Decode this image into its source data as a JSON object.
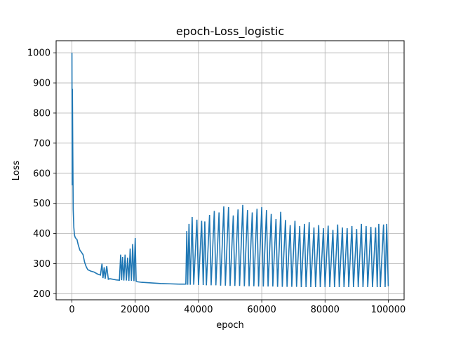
{
  "chart_data": {
    "type": "line",
    "title": "epoch-Loss_logistic",
    "xlabel": "epoch",
    "ylabel": "Loss",
    "xlim": [
      -5000,
      105000
    ],
    "ylim": [
      180,
      1040
    ],
    "x_ticks": [
      0,
      20000,
      40000,
      60000,
      80000,
      100000
    ],
    "y_ticks": [
      200,
      300,
      400,
      500,
      600,
      700,
      800,
      900,
      1000
    ],
    "grid": true,
    "series": [
      {
        "color": "#1f77b4",
        "points": [
          [
            0,
            1000
          ],
          [
            80,
            560
          ],
          [
            150,
            880
          ],
          [
            250,
            700
          ],
          [
            400,
            480
          ],
          [
            600,
            420
          ],
          [
            800,
            395
          ],
          [
            1000,
            388
          ],
          [
            1300,
            383
          ],
          [
            1600,
            380
          ],
          [
            2000,
            362
          ],
          [
            2500,
            345
          ],
          [
            3000,
            338
          ],
          [
            3500,
            330
          ],
          [
            4000,
            305
          ],
          [
            4500,
            290
          ],
          [
            5000,
            280
          ],
          [
            6000,
            275
          ],
          [
            7000,
            272
          ],
          [
            8000,
            266
          ],
          [
            9000,
            262
          ],
          [
            9500,
            300
          ],
          [
            9800,
            252
          ],
          [
            10200,
            288
          ],
          [
            10500,
            250
          ],
          [
            11000,
            292
          ],
          [
            11500,
            248
          ],
          [
            12000,
            250
          ],
          [
            13000,
            248
          ],
          [
            14000,
            246
          ],
          [
            15000,
            245
          ],
          [
            15400,
            330
          ],
          [
            15700,
            245
          ],
          [
            16000,
            322
          ],
          [
            16400,
            244
          ],
          [
            16800,
            330
          ],
          [
            17200,
            244
          ],
          [
            17600,
            320
          ],
          [
            18000,
            243
          ],
          [
            18400,
            350
          ],
          [
            18800,
            243
          ],
          [
            19200,
            365
          ],
          [
            19600,
            242
          ],
          [
            20000,
            385
          ],
          [
            20300,
            242
          ],
          [
            20600,
            240
          ],
          [
            22000,
            238
          ],
          [
            25000,
            236
          ],
          [
            28000,
            234
          ],
          [
            31000,
            233
          ],
          [
            34000,
            232
          ],
          [
            36000,
            232
          ],
          [
            36300,
            408
          ],
          [
            36600,
            230
          ],
          [
            37000,
            432
          ],
          [
            37400,
            230
          ],
          [
            38000,
            455
          ],
          [
            38500,
            230
          ],
          [
            39500,
            446
          ],
          [
            40000,
            229
          ],
          [
            41000,
            442
          ],
          [
            41500,
            229
          ],
          [
            42000,
            440
          ],
          [
            42500,
            228
          ],
          [
            43500,
            462
          ],
          [
            44000,
            228
          ],
          [
            45000,
            475
          ],
          [
            45500,
            228
          ],
          [
            46500,
            470
          ],
          [
            47000,
            227
          ],
          [
            48000,
            490
          ],
          [
            48500,
            227
          ],
          [
            49500,
            488
          ],
          [
            50000,
            226
          ],
          [
            51000,
            460
          ],
          [
            51500,
            226
          ],
          [
            52500,
            480
          ],
          [
            53000,
            226
          ],
          [
            54000,
            495
          ],
          [
            54500,
            225
          ],
          [
            55500,
            478
          ],
          [
            56000,
            225
          ],
          [
            57000,
            470
          ],
          [
            57500,
            225
          ],
          [
            58500,
            482
          ],
          [
            59000,
            224
          ],
          [
            60000,
            488
          ],
          [
            60500,
            224
          ],
          [
            61500,
            478
          ],
          [
            62000,
            224
          ],
          [
            63000,
            465
          ],
          [
            63500,
            224
          ],
          [
            64500,
            448
          ],
          [
            65000,
            223
          ],
          [
            66000,
            472
          ],
          [
            66500,
            223
          ],
          [
            67500,
            445
          ],
          [
            68000,
            223
          ],
          [
            69000,
            428
          ],
          [
            69500,
            223
          ],
          [
            70500,
            442
          ],
          [
            71000,
            223
          ],
          [
            72000,
            425
          ],
          [
            72500,
            222
          ],
          [
            73500,
            432
          ],
          [
            74000,
            222
          ],
          [
            75000,
            438
          ],
          [
            75500,
            222
          ],
          [
            76500,
            420
          ],
          [
            77000,
            222
          ],
          [
            78000,
            428
          ],
          [
            78500,
            222
          ],
          [
            79500,
            418
          ],
          [
            80000,
            222
          ],
          [
            81000,
            426
          ],
          [
            81500,
            222
          ],
          [
            82500,
            412
          ],
          [
            83000,
            222
          ],
          [
            84000,
            430
          ],
          [
            84500,
            222
          ],
          [
            85500,
            420
          ],
          [
            86000,
            222
          ],
          [
            87000,
            418
          ],
          [
            87500,
            222
          ],
          [
            88500,
            425
          ],
          [
            89000,
            222
          ],
          [
            90000,
            415
          ],
          [
            90500,
            222
          ],
          [
            91500,
            432
          ],
          [
            92000,
            222
          ],
          [
            93000,
            425
          ],
          [
            93500,
            222
          ],
          [
            94500,
            422
          ],
          [
            95000,
            222
          ],
          [
            96000,
            420
          ],
          [
            96500,
            222
          ],
          [
            97000,
            432
          ],
          [
            97500,
            222
          ],
          [
            98500,
            430
          ],
          [
            99000,
            222
          ],
          [
            99500,
            432
          ],
          [
            100000,
            225
          ]
        ]
      }
    ]
  }
}
